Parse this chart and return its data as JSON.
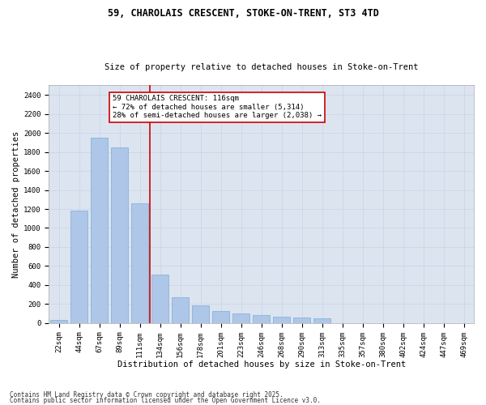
{
  "title1": "59, CHAROLAIS CRESCENT, STOKE-ON-TRENT, ST3 4TD",
  "title2": "Size of property relative to detached houses in Stoke-on-Trent",
  "xlabel": "Distribution of detached houses by size in Stoke-on-Trent",
  "ylabel": "Number of detached properties",
  "categories": [
    "22sqm",
    "44sqm",
    "67sqm",
    "89sqm",
    "111sqm",
    "134sqm",
    "156sqm",
    "178sqm",
    "201sqm",
    "223sqm",
    "246sqm",
    "268sqm",
    "290sqm",
    "313sqm",
    "335sqm",
    "357sqm",
    "380sqm",
    "402sqm",
    "424sqm",
    "447sqm",
    "469sqm"
  ],
  "values": [
    30,
    1180,
    1950,
    1850,
    1260,
    510,
    270,
    190,
    130,
    100,
    85,
    70,
    60,
    50,
    0,
    0,
    0,
    0,
    0,
    0,
    0
  ],
  "bar_color": "#aec6e8",
  "bar_edge_color": "#7aafd4",
  "vline_x_index": 4,
  "vline_color": "#cc0000",
  "annotation_line1": "59 CHAROLAIS CRESCENT: 116sqm",
  "annotation_line2": "← 72% of detached houses are smaller (5,314)",
  "annotation_line3": "28% of semi-detached houses are larger (2,038) →",
  "annotation_box_color": "#ffffff",
  "annotation_box_edge": "#cc0000",
  "grid_color": "#c8d4e8",
  "bg_color": "#dce4f0",
  "ylim": [
    0,
    2500
  ],
  "yticks": [
    0,
    200,
    400,
    600,
    800,
    1000,
    1200,
    1400,
    1600,
    1800,
    2000,
    2200,
    2400
  ],
  "footnote1": "Contains HM Land Registry data © Crown copyright and database right 2025.",
  "footnote2": "Contains public sector information licensed under the Open Government Licence v3.0."
}
